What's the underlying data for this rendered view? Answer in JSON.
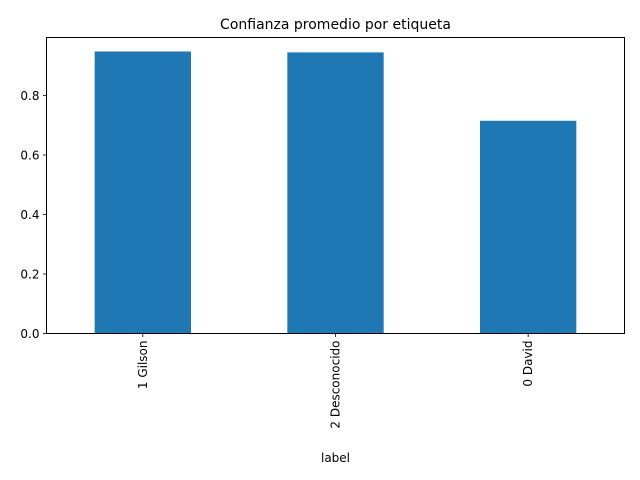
{
  "chart_data": {
    "type": "bar",
    "title": "Confianza promedio por etiqueta",
    "xlabel": "label",
    "ylabel": "",
    "categories": [
      "1 Gilson",
      "2 Desconocido",
      "0 David"
    ],
    "values": [
      0.948,
      0.945,
      0.715
    ],
    "ylim": [
      0,
      0.995
    ],
    "yticks": [
      0.0,
      0.2,
      0.4,
      0.6,
      0.8
    ],
    "ytick_labels": [
      "0.0",
      "0.2",
      "0.4",
      "0.6",
      "0.8"
    ],
    "bar_color": "#1f77b4",
    "grid": false,
    "legend": "none"
  }
}
